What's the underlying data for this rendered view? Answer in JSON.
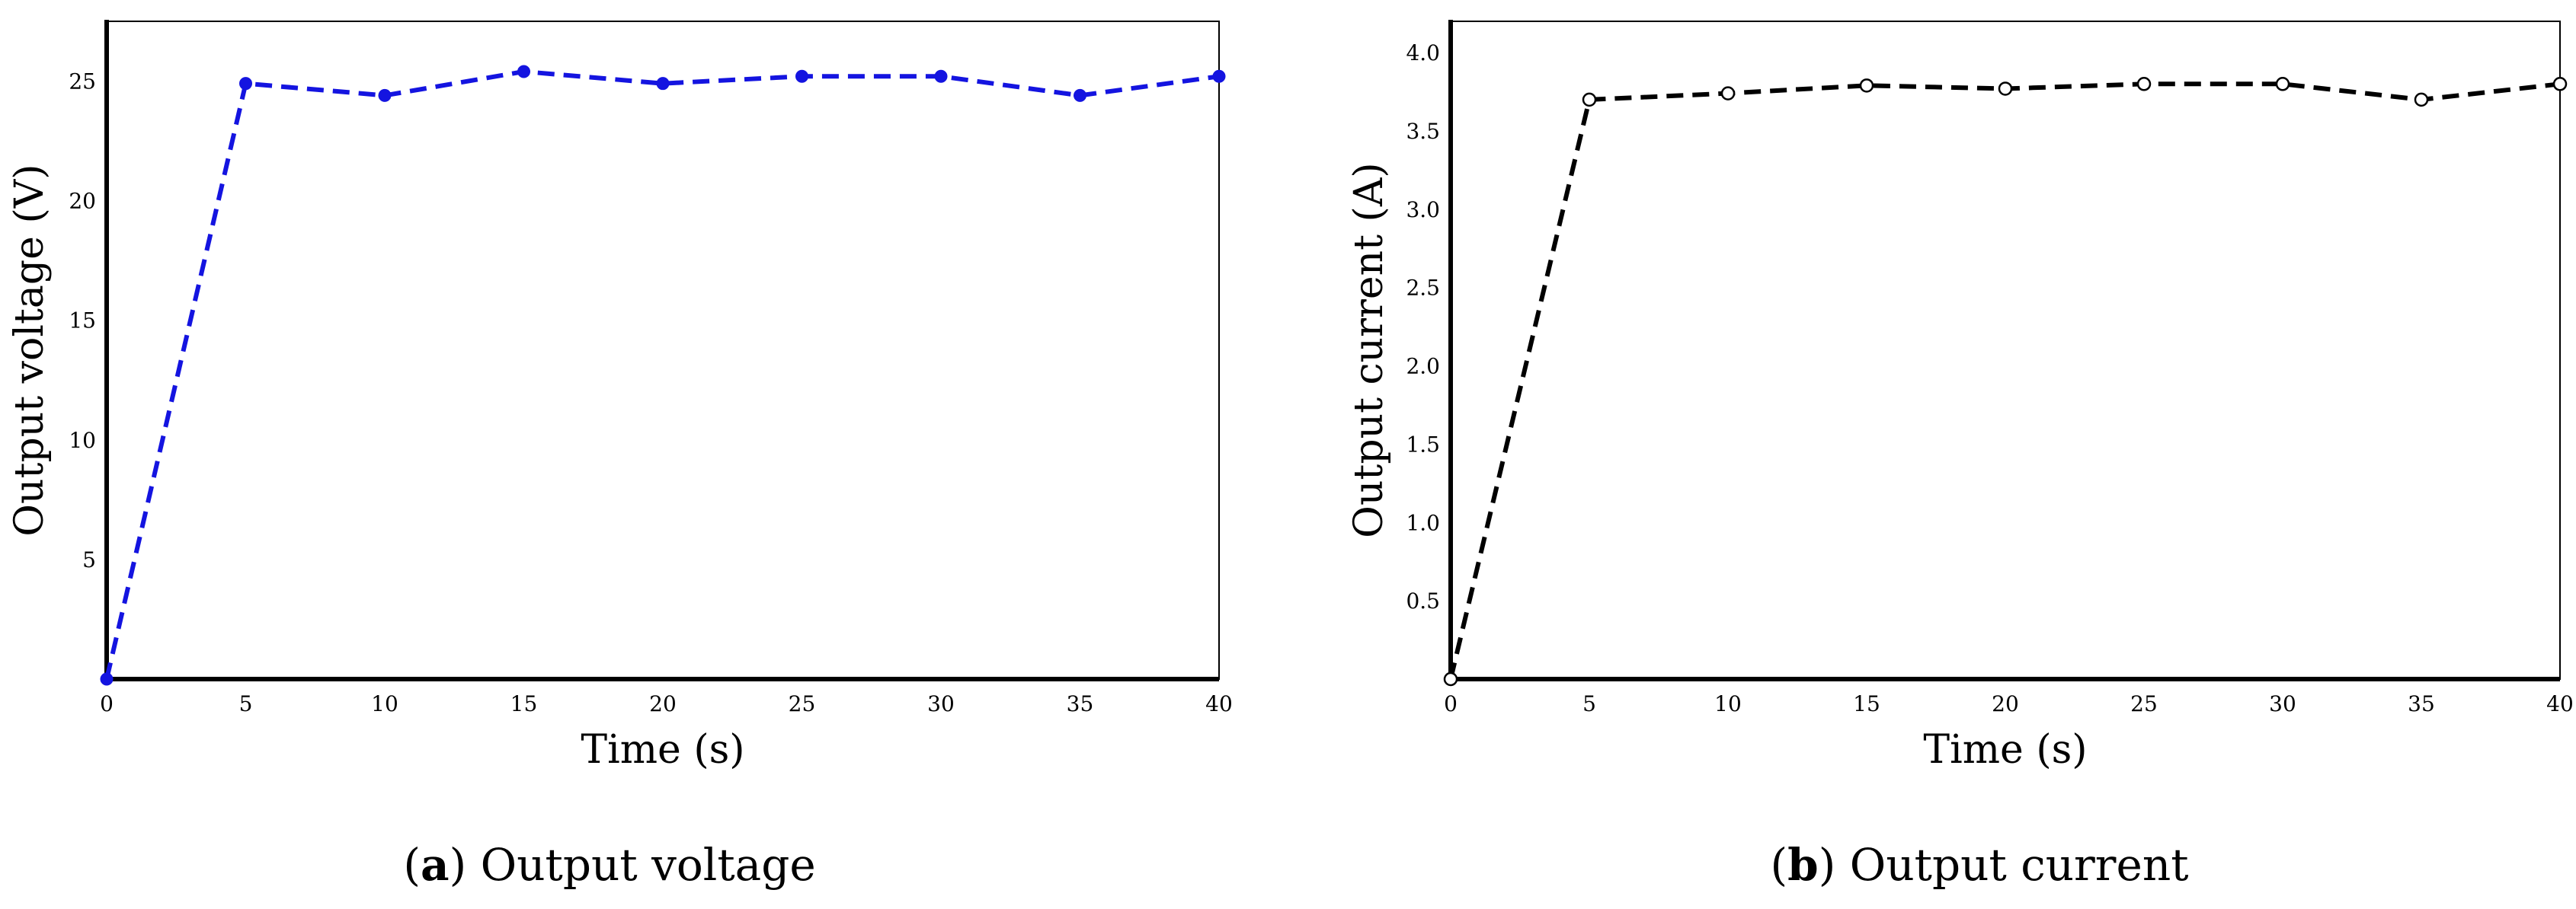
{
  "chart_data": [
    {
      "type": "line",
      "caption_letter": "a",
      "caption_text": "Output voltage",
      "xlabel": "Time (s)",
      "ylabel": "Output voltage (V)",
      "xlim": [
        0,
        40
      ],
      "ylim": [
        0,
        27.5
      ],
      "x_ticks": [
        "0",
        "5",
        "10",
        "15",
        "20",
        "25",
        "30",
        "35",
        "40"
      ],
      "y_ticks": [
        "5",
        "10",
        "15",
        "20",
        "25"
      ],
      "grid": false,
      "series": [
        {
          "color": "#1414e0",
          "line_style": "dashed",
          "marker": "filled-circle",
          "x": [
            0,
            5,
            10,
            15,
            20,
            25,
            30,
            35,
            40
          ],
          "y": [
            0,
            24.9,
            24.4,
            25.4,
            24.9,
            25.2,
            25.2,
            24.4,
            25.2
          ]
        }
      ]
    },
    {
      "type": "line",
      "caption_letter": "b",
      "caption_text": "Output current",
      "xlabel": "Time (s)",
      "ylabel": "Output current (A)",
      "xlim": [
        0,
        40
      ],
      "ylim": [
        0,
        4.2
      ],
      "x_ticks": [
        "0",
        "5",
        "10",
        "15",
        "20",
        "25",
        "30",
        "35",
        "40"
      ],
      "y_ticks": [
        "0.5",
        "1.0",
        "1.5",
        "2.0",
        "2.5",
        "3.0",
        "3.5",
        "4.0"
      ],
      "grid": false,
      "series": [
        {
          "color": "#000000",
          "line_style": "dashed",
          "marker": "open-circle",
          "x": [
            0,
            5,
            10,
            15,
            20,
            25,
            30,
            35,
            40
          ],
          "y": [
            0,
            3.7,
            3.74,
            3.79,
            3.77,
            3.8,
            3.8,
            3.7,
            3.8
          ]
        }
      ]
    }
  ]
}
